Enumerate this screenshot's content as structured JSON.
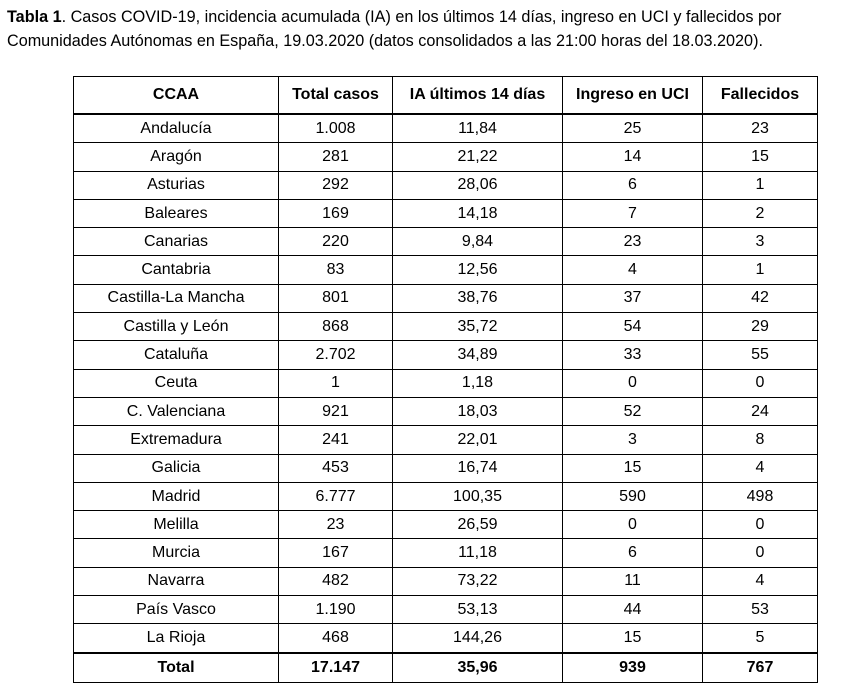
{
  "caption": {
    "label": "Tabla 1",
    "line1_rest": ". Casos COVID-19, incidencia acumulada (IA) en los últimos 14 días, ingreso en UCI y fallecidos por",
    "line2": "Comunidades Autónomas en España, 19.03.2020 (datos consolidados a las 21:00 horas del 18.03.2020)."
  },
  "table": {
    "headers": [
      "CCAA",
      "Total casos",
      "IA últimos 14 días",
      "Ingreso en UCI",
      "Fallecidos"
    ],
    "rows": [
      [
        "Andalucía",
        "1.008",
        "11,84",
        "25",
        "23"
      ],
      [
        "Aragón",
        "281",
        "21,22",
        "14",
        "15"
      ],
      [
        "Asturias",
        "292",
        "28,06",
        "6",
        "1"
      ],
      [
        "Baleares",
        "169",
        "14,18",
        "7",
        "2"
      ],
      [
        "Canarias",
        "220",
        "9,84",
        "23",
        "3"
      ],
      [
        "Cantabria",
        "83",
        "12,56",
        "4",
        "1"
      ],
      [
        "Castilla-La Mancha",
        "801",
        "38,76",
        "37",
        "42"
      ],
      [
        "Castilla y León",
        "868",
        "35,72",
        "54",
        "29"
      ],
      [
        "Cataluña",
        "2.702",
        "34,89",
        "33",
        "55"
      ],
      [
        "Ceuta",
        "1",
        "1,18",
        "0",
        "0"
      ],
      [
        "C. Valenciana",
        "921",
        "18,03",
        "52",
        "24"
      ],
      [
        "Extremadura",
        "241",
        "22,01",
        "3",
        "8"
      ],
      [
        "Galicia",
        "453",
        "16,74",
        "15",
        "4"
      ],
      [
        "Madrid",
        "6.777",
        "100,35",
        "590",
        "498"
      ],
      [
        "Melilla",
        "23",
        "26,59",
        "0",
        "0"
      ],
      [
        "Murcia",
        "167",
        "11,18",
        "6",
        "0"
      ],
      [
        "Navarra",
        "482",
        "73,22",
        "11",
        "4"
      ],
      [
        "País Vasco",
        "1.190",
        "53,13",
        "44",
        "53"
      ],
      [
        "La Rioja",
        "468",
        "144,26",
        "15",
        "5"
      ]
    ],
    "total": [
      "Total",
      "17.147",
      "35,96",
      "939",
      "767"
    ]
  }
}
